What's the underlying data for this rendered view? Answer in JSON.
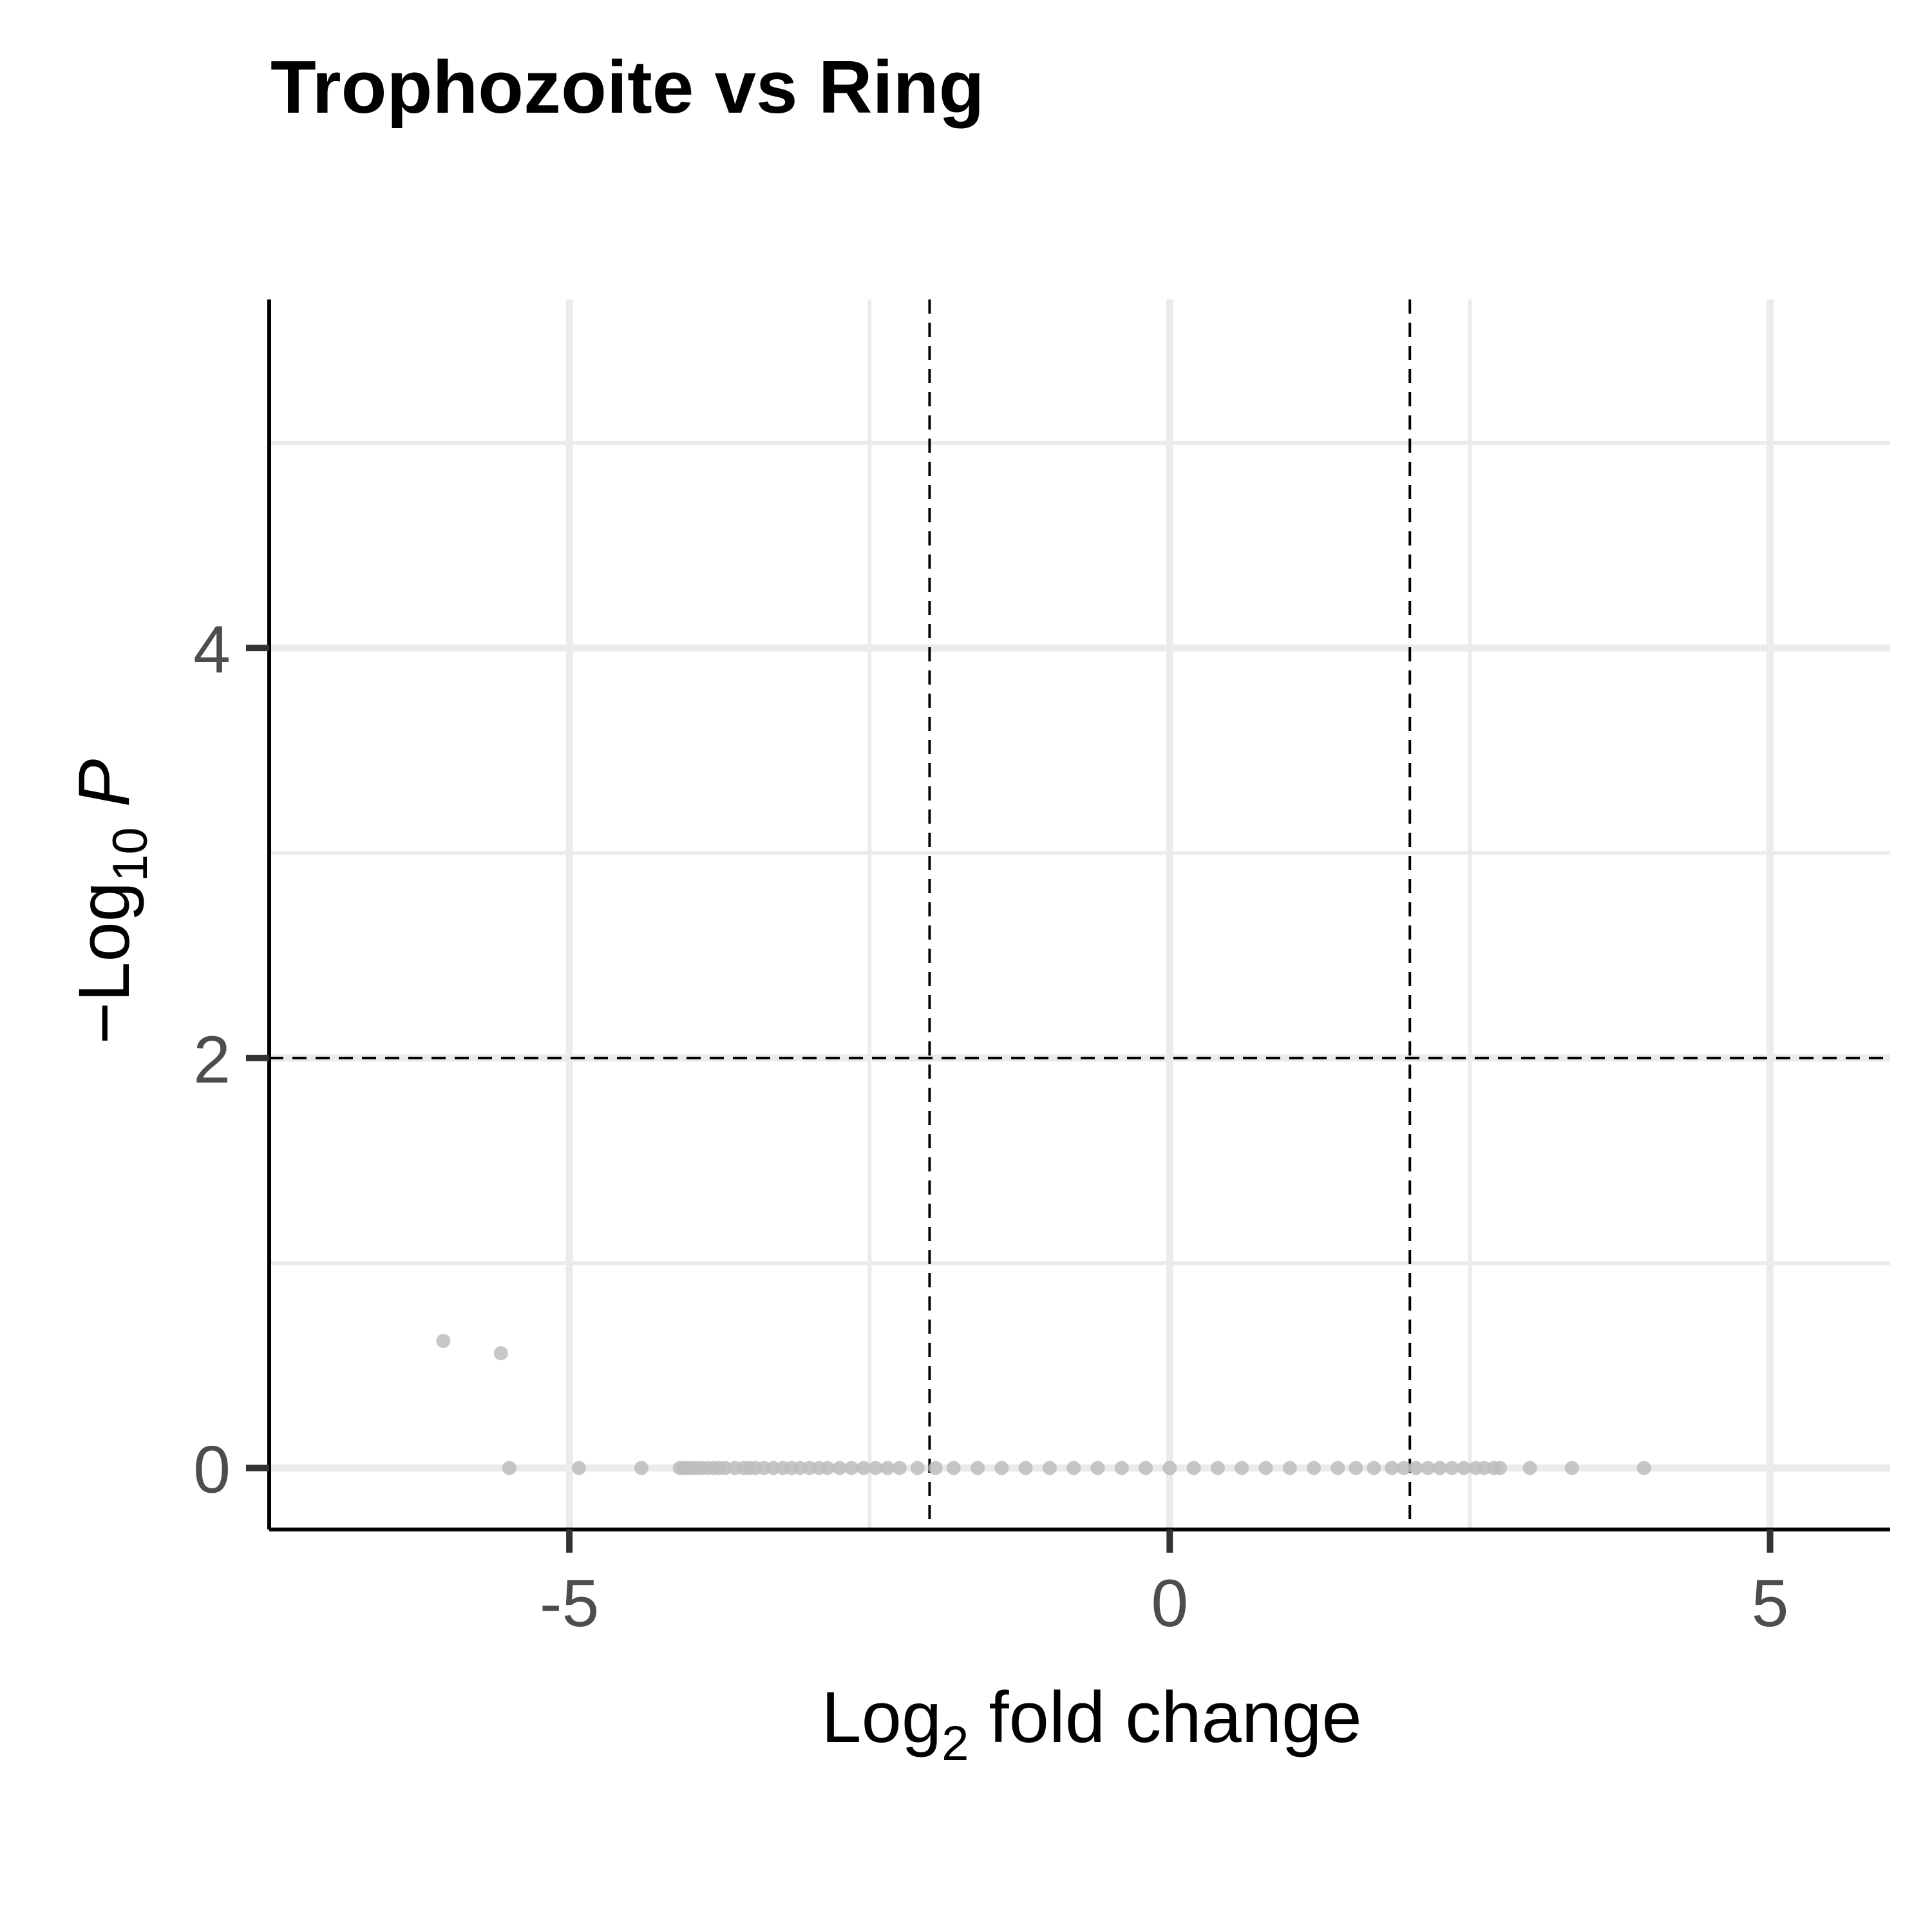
{
  "chart_data": {
    "type": "scatter",
    "title": "Trophozoite vs Ring",
    "xlabel": {
      "prefix": "Log",
      "subscript": "2",
      "suffix": " fold change"
    },
    "ylabel": {
      "prefix": "−Log",
      "subscript": "10",
      "suffix": " P"
    },
    "xlim": [
      -7.5,
      6.0
    ],
    "ylim": [
      -0.3,
      5.7
    ],
    "x_ticks": [
      -5,
      0,
      5
    ],
    "x_tick_labels": [
      "-5",
      "0",
      "5"
    ],
    "y_ticks": [
      0,
      2,
      4
    ],
    "y_tick_labels": [
      "0",
      "2",
      "4"
    ],
    "minor_x": [
      -7.5,
      -2.5,
      2.5
    ],
    "minor_y": [
      1,
      3,
      5
    ],
    "grid": true,
    "thresholds": {
      "log2fc": [
        -2,
        2
      ],
      "neg_log10_p": 2
    },
    "point_color": "#bdbdbd",
    "series": [
      {
        "x": [
          -6.05,
          -5.57,
          -5.5,
          -4.92,
          -4.4,
          -4.08,
          -4.05,
          -4.02,
          -3.98,
          -3.95,
          -3.9,
          -3.85,
          -3.8,
          -3.75,
          -3.7,
          -3.62,
          -3.55,
          -3.5,
          -3.45,
          -3.38,
          -3.3,
          -3.22,
          -3.15,
          -3.08,
          -3.0,
          -2.92,
          -2.85,
          -2.75,
          -2.65,
          -2.55,
          -2.45,
          -2.35,
          -2.25,
          -2.1,
          -1.95,
          -1.8,
          -1.6,
          -1.4,
          -1.2,
          -1.0,
          -0.8,
          -0.6,
          -0.4,
          -0.2,
          0.0,
          0.2,
          0.4,
          0.6,
          0.8,
          1.0,
          1.2,
          1.4,
          1.55,
          1.7,
          1.85,
          1.95,
          2.05,
          2.15,
          2.25,
          2.35,
          2.45,
          2.55,
          2.62,
          2.7,
          2.75,
          3.0,
          3.35,
          3.95
        ],
        "y": [
          0.62,
          0.56,
          0,
          0,
          0,
          0,
          0,
          0,
          0,
          0,
          0,
          0,
          0,
          0,
          0,
          0,
          0,
          0,
          0,
          0,
          0,
          0,
          0,
          0,
          0,
          0,
          0,
          0,
          0,
          0,
          0,
          0,
          0,
          0,
          0,
          0,
          0,
          0,
          0,
          0,
          0,
          0,
          0,
          0,
          0,
          0,
          0,
          0,
          0,
          0,
          0,
          0,
          0,
          0,
          0,
          0,
          0,
          0,
          0,
          0,
          0,
          0,
          0,
          0,
          0,
          0,
          0,
          0
        ]
      }
    ]
  }
}
